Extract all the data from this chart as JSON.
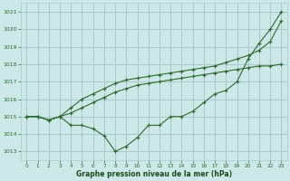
{
  "title": "Graphe pression niveau de la mer (hPa)",
  "bg_color": "#cce8e8",
  "grid_color": "#aacccc",
  "line_color": "#2d6a2d",
  "xlim": [
    -0.5,
    23.5
  ],
  "ylim": [
    1012.5,
    1021.5
  ],
  "yticks": [
    1013,
    1014,
    1015,
    1016,
    1017,
    1018,
    1019,
    1020,
    1021
  ],
  "xticks": [
    0,
    1,
    2,
    3,
    4,
    5,
    6,
    7,
    8,
    9,
    10,
    11,
    12,
    13,
    14,
    15,
    16,
    17,
    18,
    19,
    20,
    21,
    22,
    23
  ],
  "series": [
    [
      1015.0,
      1015.0,
      1014.8,
      1015.0,
      1014.5,
      1014.5,
      1014.3,
      1013.9,
      1013.0,
      1013.3,
      1013.8,
      1014.5,
      1014.5,
      1015.0,
      1015.0,
      1015.3,
      1015.8,
      1016.3,
      1016.5,
      1017.0,
      1018.3,
      1019.2,
      1020.0,
      1021.0
    ],
    [
      1015.0,
      1015.0,
      1014.8,
      1015.0,
      1015.2,
      1015.5,
      1015.8,
      1016.1,
      1016.4,
      1016.6,
      1016.8,
      1016.9,
      1017.0,
      1017.1,
      1017.2,
      1017.3,
      1017.4,
      1017.5,
      1017.6,
      1017.7,
      1017.8,
      1017.9,
      1017.9,
      1018.0
    ],
    [
      1015.0,
      1015.0,
      1014.8,
      1015.0,
      1015.5,
      1016.0,
      1016.3,
      1016.6,
      1016.9,
      1017.1,
      1017.2,
      1017.3,
      1017.4,
      1017.5,
      1017.6,
      1017.7,
      1017.8,
      1017.9,
      1018.1,
      1018.3,
      1018.5,
      1018.8,
      1019.3,
      1020.5
    ]
  ]
}
